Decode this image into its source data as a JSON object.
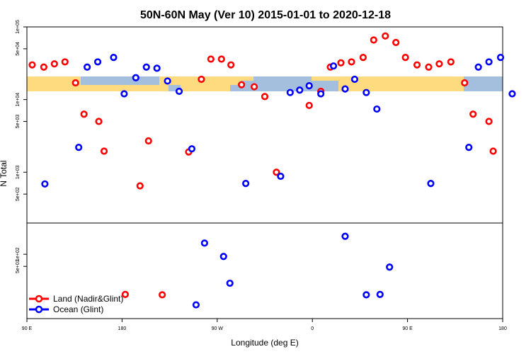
{
  "chart_data": {
    "type": "scatter",
    "title": "50N-60N May (Ver 10)   2015-01-01 to 2020-12-18",
    "xlabel": "Longitude (deg E)",
    "ylabel": "N Total",
    "xlim": [
      90,
      540
    ],
    "x_ticks": [
      {
        "value": 90,
        "label": "90 E"
      },
      {
        "value": 180,
        "label": "180"
      },
      {
        "value": 270,
        "label": "90 W"
      },
      {
        "value": 360,
        "label": "0"
      },
      {
        "value": 450,
        "label": "90 E"
      },
      {
        "value": 540,
        "label": "180"
      }
    ],
    "upper_panel": {
      "scale": "log",
      "ylim": [
        200,
        100000
      ],
      "y_ticks": [
        {
          "value": 500,
          "label": "5e+02"
        },
        {
          "value": 1000,
          "label": "1e+03"
        },
        {
          "value": 5000,
          "label": "5e+03"
        },
        {
          "value": 10000,
          "label": "1e+04"
        },
        {
          "value": 50000,
          "label": "5e+04"
        },
        {
          "value": 100000,
          "label": "1e+05"
        }
      ],
      "series": [
        {
          "name": "Land (Nadir&Glint)",
          "color": "#ff0000",
          "points": [
            [
              95,
              30000
            ],
            [
              106,
              28000
            ],
            [
              116,
              31000
            ],
            [
              126,
              33000
            ],
            [
              136,
              17000
            ],
            [
              144,
              6300
            ],
            [
              158,
              5000
            ],
            [
              163,
              1950
            ],
            [
              197,
              650
            ],
            [
              205,
              2700
            ],
            [
              243,
              1900
            ],
            [
              255,
              19000
            ],
            [
              264,
              36000
            ],
            [
              274,
              36000
            ],
            [
              283,
              30000
            ],
            [
              293,
              16000
            ],
            [
              305,
              15000
            ],
            [
              315,
              11000
            ],
            [
              326,
              1000
            ],
            [
              357,
              8300
            ],
            [
              368,
              13000
            ],
            [
              377,
              28000
            ],
            [
              387,
              32000
            ],
            [
              397,
              33000
            ],
            [
              408,
              38000
            ],
            [
              418,
              66000
            ],
            [
              429,
              75000
            ],
            [
              439,
              61000
            ],
            [
              448,
              38000
            ],
            [
              459,
              30000
            ],
            [
              470,
              28000
            ],
            [
              480,
              31000
            ],
            [
              491,
              33000
            ],
            [
              504,
              17000
            ],
            [
              512,
              6300
            ],
            [
              527,
              5000
            ],
            [
              531,
              1950
            ]
          ]
        },
        {
          "name": "Ocean (Glint)",
          "color": "#0000ff",
          "points": [
            [
              107,
              690
            ],
            [
              139,
              2200
            ],
            [
              147,
              28000
            ],
            [
              157,
              33000
            ],
            [
              172,
              38000
            ],
            [
              182,
              12000
            ],
            [
              193,
              20000
            ],
            [
              203,
              28000
            ],
            [
              213,
              27000
            ],
            [
              223,
              18000
            ],
            [
              234,
              13000
            ],
            [
              246,
              2100
            ],
            [
              297,
              700
            ],
            [
              330,
              880
            ],
            [
              339,
              12500
            ],
            [
              348,
              13500
            ],
            [
              357,
              15500
            ],
            [
              368,
              12000
            ],
            [
              380,
              29000
            ],
            [
              391,
              14000
            ],
            [
              400,
              19000
            ],
            [
              411,
              12500
            ],
            [
              421,
              7400
            ],
            [
              472,
              700
            ],
            [
              508,
              2200
            ],
            [
              517,
              28000
            ],
            [
              527,
              33000
            ],
            [
              538,
              38000
            ],
            [
              549,
              12000
            ]
          ]
        }
      ]
    },
    "lower_panel": {
      "scale": "log",
      "ylim": [
        2.5,
        600
      ],
      "y_ticks": [
        {
          "value": 50,
          "label": "5e+01"
        },
        {
          "value": 100,
          "label": "1e+02"
        }
      ],
      "series": [
        {
          "name": "Land (Nadir&Glint)",
          "color": "#ff0000",
          "points": [
            [
              183,
              10
            ],
            [
              218,
              9.8
            ]
          ]
        },
        {
          "name": "Ocean (Glint)",
          "color": "#0000ff",
          "points": [
            [
              250,
              5.5
            ],
            [
              258,
              190
            ],
            [
              276,
              88
            ],
            [
              282,
              19
            ],
            [
              391,
              280
            ],
            [
              411,
              9.8
            ],
            [
              424,
              10
            ],
            [
              433,
              48
            ]
          ]
        }
      ]
    },
    "legend": {
      "placement": "bottom-left",
      "entries": [
        {
          "label": "Land (Nadir&Glint)",
          "color": "#ff0000"
        },
        {
          "label": "Ocean (Glint)",
          "color": "#0000ff"
        }
      ]
    },
    "map_band": {
      "ocean_color": "#a4bedd",
      "land_color": "#fddb7e"
    }
  }
}
